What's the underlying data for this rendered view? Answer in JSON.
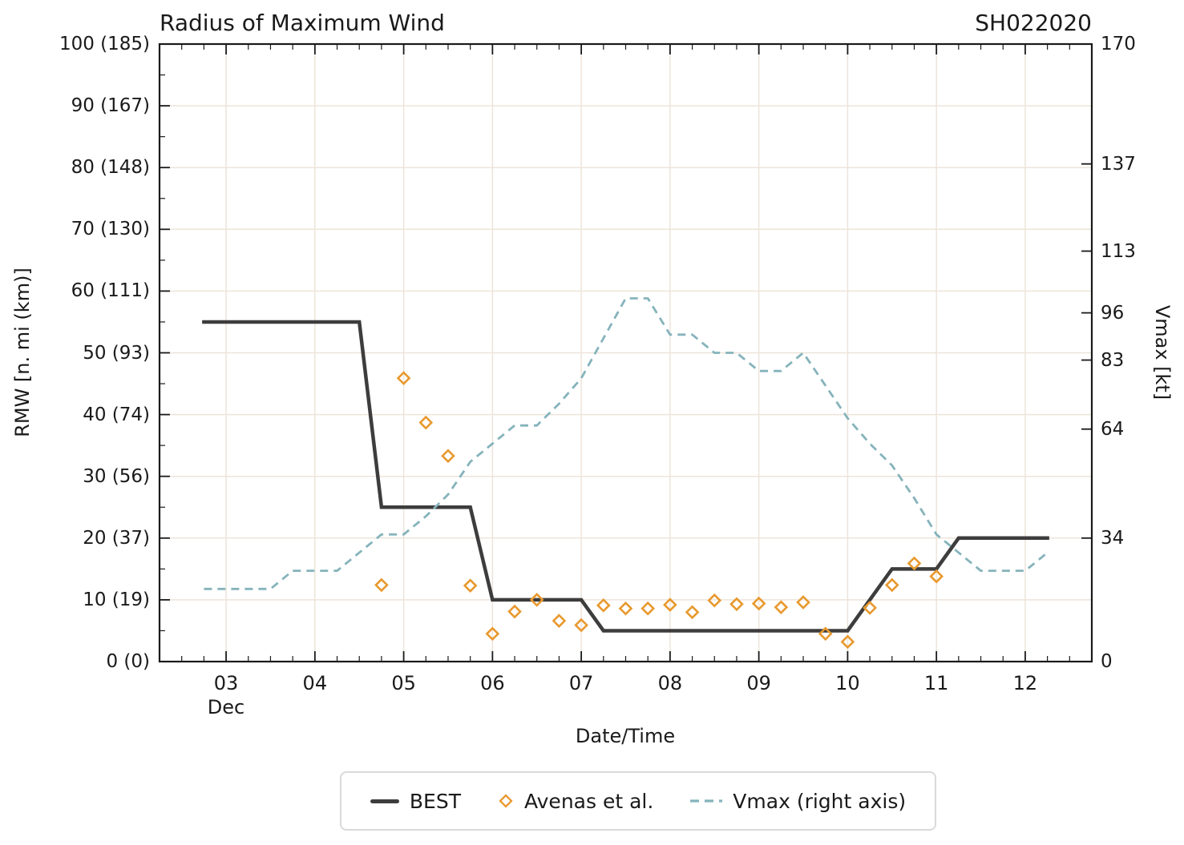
{
  "header": {
    "title": "Radius of Maximum Wind",
    "storm_id": "SH022020"
  },
  "axes": {
    "x": {
      "label": "Date/Time",
      "month": "Dec"
    },
    "left": {
      "label": "RMW [n. mi (km)]"
    },
    "right": {
      "label": "Vmax [kt]"
    }
  },
  "legend": [
    {
      "name": "BEST",
      "marker": "solid-line"
    },
    {
      "name": "Avenas et al.",
      "marker": "open-diamond"
    },
    {
      "name": "Vmax (right axis)",
      "marker": "dashed-line"
    }
  ],
  "colors": {
    "best_line": "#3d3d3d",
    "avenas_marker": "#e8992e",
    "vmax_line": "#85b3bb",
    "gridline": "#ede4da",
    "axis": "#1a1a1a",
    "legend_border": "#d9d9d9"
  },
  "chart_data": {
    "type": "line",
    "title": "Radius of Maximum Wind",
    "storm_id": "SH022020",
    "xlabel": "Date/Time",
    "x_month": "Dec",
    "x_units": "day of December, data every 6 h",
    "xlim": [
      2.25,
      12.75
    ],
    "x_major_ticks": [
      {
        "value": 3,
        "label": "03"
      },
      {
        "value": 4,
        "label": "04"
      },
      {
        "value": 5,
        "label": "05"
      },
      {
        "value": 6,
        "label": "06"
      },
      {
        "value": 7,
        "label": "07"
      },
      {
        "value": 8,
        "label": "08"
      },
      {
        "value": 9,
        "label": "09"
      },
      {
        "value": 10,
        "label": "10"
      },
      {
        "value": 11,
        "label": "11"
      },
      {
        "value": 12,
        "label": "12"
      }
    ],
    "x_minor_step": 0.25,
    "left_axis": {
      "label": "RMW [n. mi (km)]",
      "lim": [
        0,
        100
      ],
      "major_step": 10,
      "minor_step": 5,
      "tick_labels": [
        "0 (0)",
        "10 (19)",
        "20 (37)",
        "30 (56)",
        "40 (74)",
        "50 (93)",
        "60 (111)",
        "70 (130)",
        "80 (148)",
        "90 (167)",
        "100 (185)"
      ]
    },
    "right_axis": {
      "label": "Vmax [kt]",
      "lim": [
        0,
        170
      ],
      "ticks": [
        0,
        34,
        64,
        83,
        96,
        113,
        137,
        170
      ]
    },
    "grid": "light beige gridlines at day ticks (vertical) and every 10 n.mi (horizontal)",
    "legend_position": "bottom-center",
    "series": [
      {
        "name": "BEST",
        "type": "line",
        "style": "solid",
        "axis": "left",
        "color": "#3d3d3d",
        "points": [
          [
            2.75,
            55
          ],
          [
            4.5,
            55
          ],
          [
            4.75,
            25
          ],
          [
            5.75,
            25
          ],
          [
            6,
            10
          ],
          [
            7,
            10
          ],
          [
            7.25,
            5
          ],
          [
            10,
            5
          ],
          [
            10.5,
            15
          ],
          [
            11,
            15
          ],
          [
            11.25,
            20
          ],
          [
            12.25,
            20
          ]
        ]
      },
      {
        "name": "Avenas et al.",
        "type": "scatter",
        "marker": "open-diamond",
        "axis": "left",
        "color": "#e8992e",
        "points": [
          [
            4.75,
            12.4
          ],
          [
            5,
            45.9
          ],
          [
            5.25,
            38.7
          ],
          [
            5.5,
            33.3
          ],
          [
            5.75,
            12.3
          ],
          [
            6,
            4.5
          ],
          [
            6.25,
            8.1
          ],
          [
            6.5,
            10
          ],
          [
            6.75,
            6.6
          ],
          [
            7,
            5.9
          ],
          [
            7.25,
            9.1
          ],
          [
            7.5,
            8.6
          ],
          [
            7.75,
            8.6
          ],
          [
            8,
            9.2
          ],
          [
            8.25,
            8
          ],
          [
            8.5,
            9.9
          ],
          [
            8.75,
            9.3
          ],
          [
            9,
            9.4
          ],
          [
            9.25,
            8.8
          ],
          [
            9.5,
            9.6
          ],
          [
            9.75,
            4.5
          ],
          [
            10,
            3.2
          ],
          [
            10.25,
            8.7
          ],
          [
            10.5,
            12.4
          ],
          [
            10.75,
            15.9
          ],
          [
            11,
            13.8
          ]
        ]
      },
      {
        "name": "Vmax (right axis)",
        "type": "line",
        "style": "dashed",
        "axis": "right",
        "color": "#85b3bb",
        "points": [
          [
            2.75,
            20
          ],
          [
            3,
            20
          ],
          [
            3.25,
            20
          ],
          [
            3.5,
            20
          ],
          [
            3.75,
            25
          ],
          [
            4,
            25
          ],
          [
            4.25,
            25
          ],
          [
            4.5,
            30
          ],
          [
            4.75,
            35
          ],
          [
            5,
            35
          ],
          [
            5.25,
            40
          ],
          [
            5.5,
            46
          ],
          [
            5.75,
            55
          ],
          [
            6,
            60
          ],
          [
            6.25,
            65
          ],
          [
            6.5,
            65
          ],
          [
            6.75,
            71
          ],
          [
            7,
            78
          ],
          [
            7.25,
            89
          ],
          [
            7.5,
            100
          ],
          [
            7.75,
            100
          ],
          [
            8,
            90
          ],
          [
            8.25,
            90
          ],
          [
            8.5,
            85
          ],
          [
            8.75,
            85
          ],
          [
            9,
            80
          ],
          [
            9.25,
            80
          ],
          [
            9.5,
            85
          ],
          [
            9.75,
            76
          ],
          [
            10,
            67
          ],
          [
            10.25,
            60
          ],
          [
            10.5,
            54
          ],
          [
            10.75,
            45
          ],
          [
            11,
            35
          ],
          [
            11.25,
            30
          ],
          [
            11.5,
            25
          ],
          [
            11.75,
            25
          ],
          [
            12,
            25
          ],
          [
            12.25,
            30
          ]
        ]
      }
    ]
  }
}
